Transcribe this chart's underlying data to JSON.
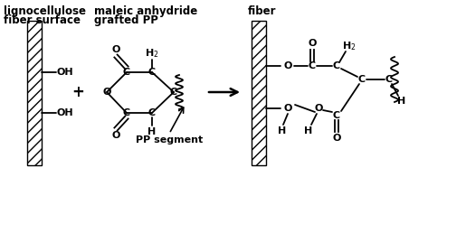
{
  "bg_color": "#ffffff",
  "label_left_title1": "lignocellulose",
  "label_left_title2": "fiber surface",
  "label_mid_title1": "maleic anhydride",
  "label_mid_title2": "grafted PP",
  "label_right_title": "fiber",
  "label_pp": "PP segment",
  "font_size_title": 8.5,
  "font_size_atom": 8,
  "line_color": "#000000",
  "line_width": 1.3
}
